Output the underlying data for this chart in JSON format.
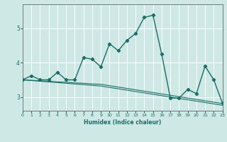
{
  "xlabel": "Humidex (Indice chaleur)",
  "background_color": "#cde8e5",
  "grid_color": "#ffffff",
  "line_color": "#1a6e65",
  "x_values": [
    0,
    1,
    2,
    3,
    4,
    5,
    6,
    7,
    8,
    9,
    10,
    11,
    12,
    13,
    14,
    15,
    16,
    17,
    18,
    19,
    20,
    21,
    22,
    23
  ],
  "series1": [
    3.5,
    3.62,
    3.5,
    3.5,
    3.72,
    3.5,
    3.5,
    4.15,
    4.1,
    3.88,
    4.55,
    4.35,
    4.65,
    4.85,
    5.32,
    5.38,
    4.25,
    2.97,
    2.97,
    3.22,
    3.1,
    3.9,
    3.5,
    2.82
  ],
  "series2": [
    3.5,
    3.48,
    3.46,
    3.44,
    3.42,
    3.4,
    3.38,
    3.36,
    3.34,
    3.32,
    3.28,
    3.24,
    3.2,
    3.16,
    3.12,
    3.08,
    3.04,
    3.0,
    2.96,
    2.92,
    2.88,
    2.84,
    2.8,
    2.76
  ],
  "series3": [
    3.5,
    3.49,
    3.47,
    3.46,
    3.44,
    3.43,
    3.41,
    3.4,
    3.38,
    3.37,
    3.33,
    3.29,
    3.25,
    3.21,
    3.17,
    3.13,
    3.09,
    3.05,
    3.01,
    2.97,
    2.93,
    2.89,
    2.85,
    2.81
  ],
  "ylim": [
    2.6,
    5.7
  ],
  "yticks": [
    3,
    4,
    5
  ],
  "xlim": [
    0,
    23
  ],
  "xticks": [
    0,
    1,
    2,
    3,
    4,
    5,
    6,
    7,
    8,
    9,
    10,
    11,
    12,
    13,
    14,
    15,
    16,
    17,
    18,
    19,
    20,
    21,
    22,
    23
  ]
}
